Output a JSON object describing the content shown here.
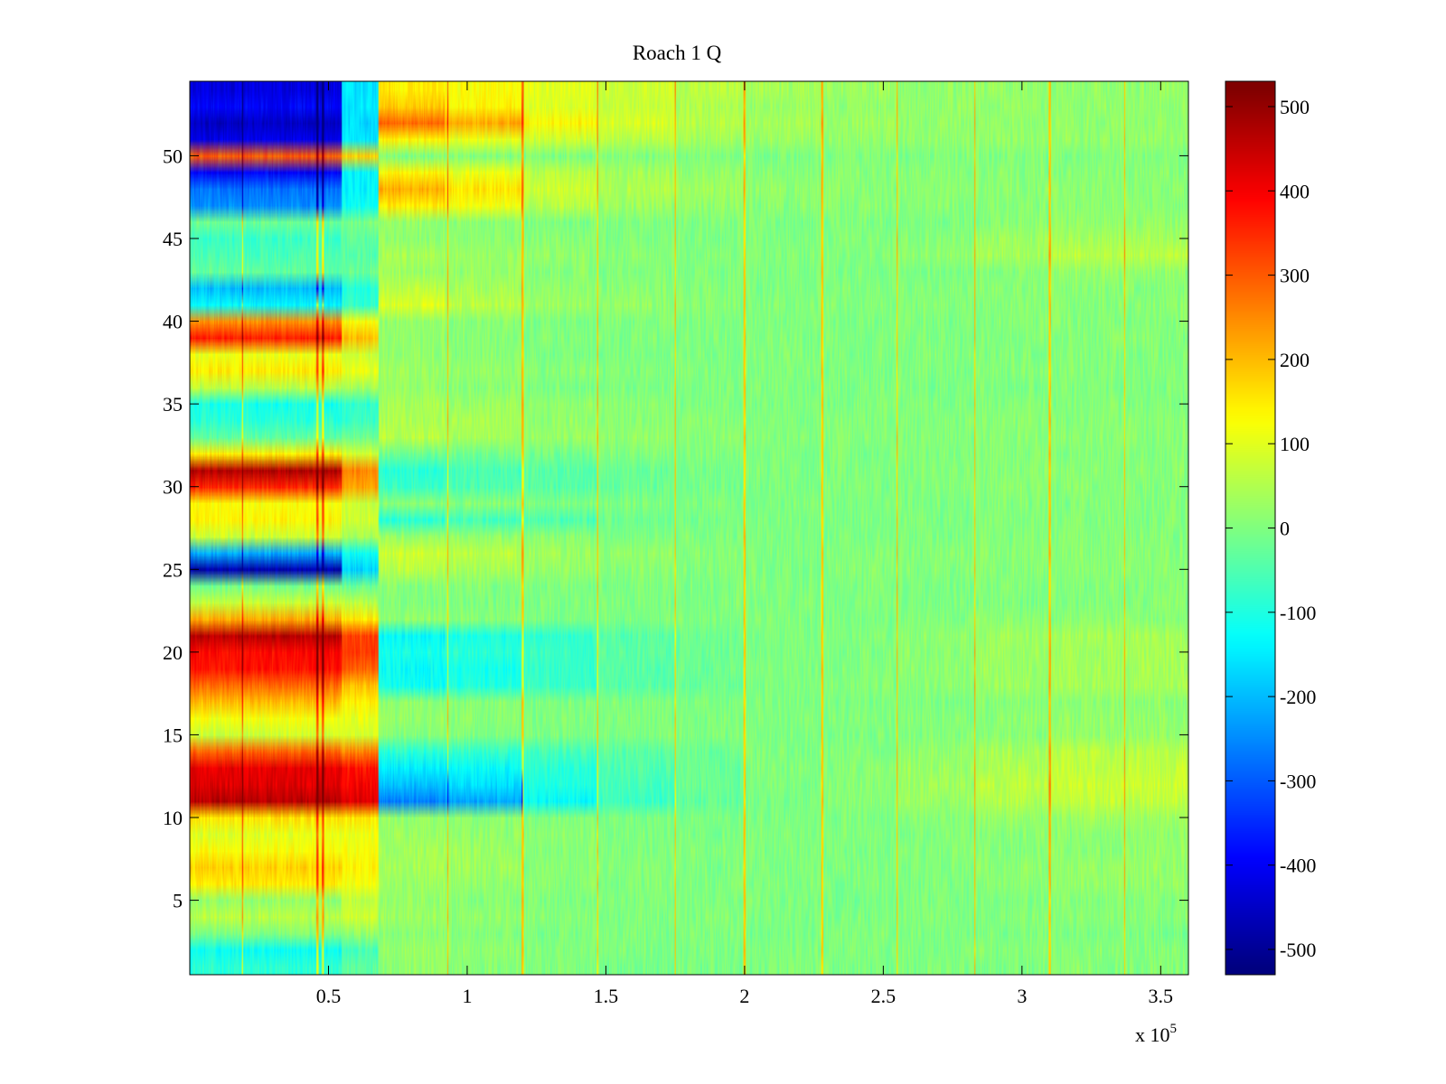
{
  "chart_data": {
    "type": "heatmap",
    "title": "Roach 1 Q",
    "xlabel": "",
    "ylabel": "",
    "x_range": [
      0,
      360000
    ],
    "y_range": [
      0.5,
      54.5
    ],
    "x_ticks": [
      50000,
      100000,
      150000,
      200000,
      250000,
      300000,
      350000
    ],
    "x_tick_labels": [
      "0.5",
      "1",
      "1.5",
      "2",
      "2.5",
      "3",
      "3.5"
    ],
    "x_exponent_label": "x 10",
    "x_exponent_power": "5",
    "y_ticks": [
      5,
      10,
      15,
      20,
      25,
      30,
      35,
      40,
      45,
      50
    ],
    "y_tick_labels": [
      "5",
      "10",
      "15",
      "20",
      "25",
      "30",
      "35",
      "40",
      "45",
      "50"
    ],
    "colormap": "jet",
    "color_range": [
      -530,
      530
    ],
    "colorbar_ticks": [
      500,
      400,
      300,
      200,
      100,
      0,
      -100,
      -200,
      -300,
      -400,
      -500
    ],
    "colorbar_tick_labels": [
      "500",
      "400",
      "300",
      "200",
      "100",
      "0",
      "-100",
      "-200",
      "-300",
      "-400",
      "-500"
    ],
    "segment_boundaries": [
      0,
      55000,
      68000,
      92000,
      120000,
      147000,
      175000,
      200000,
      228000,
      255000,
      283000,
      310000,
      337000,
      360000
    ],
    "spike_x": [
      19000,
      46000,
      48000,
      93000,
      120000,
      147000,
      175000,
      200000,
      228000,
      255000,
      283000,
      310000,
      337000
    ],
    "noise_amplitude": 30,
    "rows": [
      {
        "y": 1,
        "levels": [
          -90,
          -30,
          20,
          10,
          0,
          -10,
          -5,
          0,
          -5,
          0,
          0,
          5,
          5
        ]
      },
      {
        "y": 2,
        "levels": [
          -120,
          -60,
          30,
          15,
          5,
          0,
          0,
          0,
          0,
          0,
          5,
          10,
          10
        ]
      },
      {
        "y": 3,
        "levels": [
          0,
          20,
          10,
          5,
          0,
          0,
          0,
          -5,
          0,
          0,
          0,
          0,
          0
        ]
      },
      {
        "y": 4,
        "levels": [
          60,
          80,
          30,
          20,
          10,
          0,
          5,
          0,
          0,
          0,
          5,
          10,
          10
        ]
      },
      {
        "y": 5,
        "levels": [
          20,
          60,
          20,
          10,
          0,
          0,
          0,
          0,
          -5,
          0,
          0,
          5,
          5
        ]
      },
      {
        "y": 6,
        "levels": [
          150,
          120,
          30,
          20,
          10,
          5,
          5,
          0,
          0,
          0,
          10,
          20,
          20
        ]
      },
      {
        "y": 7,
        "levels": [
          180,
          140,
          40,
          30,
          10,
          5,
          0,
          0,
          0,
          5,
          15,
          20,
          25
        ]
      },
      {
        "y": 8,
        "levels": [
          130,
          120,
          40,
          30,
          10,
          5,
          5,
          0,
          0,
          5,
          10,
          15,
          20
        ]
      },
      {
        "y": 9,
        "levels": [
          100,
          110,
          30,
          20,
          10,
          0,
          0,
          0,
          0,
          0,
          10,
          15,
          20
        ]
      },
      {
        "y": 10,
        "levels": [
          160,
          150,
          20,
          10,
          0,
          0,
          0,
          0,
          0,
          5,
          20,
          30,
          30
        ]
      },
      {
        "y": 11,
        "levels": [
          470,
          430,
          -260,
          -220,
          -130,
          -70,
          -30,
          -10,
          10,
          30,
          50,
          70,
          70
        ]
      },
      {
        "y": 12,
        "levels": [
          430,
          400,
          -200,
          -170,
          -100,
          -60,
          -20,
          0,
          10,
          30,
          60,
          80,
          80
        ]
      },
      {
        "y": 13,
        "levels": [
          420,
          380,
          -150,
          -130,
          -90,
          -50,
          -20,
          0,
          10,
          30,
          50,
          70,
          70
        ]
      },
      {
        "y": 14,
        "levels": [
          300,
          260,
          -90,
          -80,
          -60,
          -40,
          -20,
          0,
          5,
          20,
          40,
          60,
          60
        ]
      },
      {
        "y": 15,
        "levels": [
          80,
          90,
          10,
          5,
          0,
          0,
          0,
          0,
          0,
          5,
          10,
          20,
          20
        ]
      },
      {
        "y": 16,
        "levels": [
          120,
          110,
          20,
          10,
          0,
          0,
          0,
          0,
          0,
          5,
          15,
          20,
          20
        ]
      },
      {
        "y": 17,
        "levels": [
          200,
          150,
          20,
          10,
          0,
          0,
          0,
          0,
          0,
          0,
          10,
          10,
          15
        ]
      },
      {
        "y": 18,
        "levels": [
          290,
          200,
          -120,
          -100,
          -70,
          -40,
          -20,
          0,
          5,
          15,
          30,
          40,
          40
        ]
      },
      {
        "y": 19,
        "levels": [
          380,
          300,
          -130,
          -110,
          -80,
          -40,
          -20,
          0,
          5,
          15,
          30,
          40,
          40
        ]
      },
      {
        "y": 20,
        "levels": [
          390,
          340,
          -110,
          -90,
          -70,
          -40,
          -20,
          0,
          5,
          15,
          30,
          40,
          40
        ]
      },
      {
        "y": 21,
        "levels": [
          470,
          330,
          -130,
          -110,
          -80,
          -40,
          -20,
          0,
          5,
          15,
          30,
          40,
          40
        ]
      },
      {
        "y": 22,
        "levels": [
          220,
          150,
          20,
          10,
          0,
          0,
          0,
          0,
          0,
          5,
          10,
          10,
          10
        ]
      },
      {
        "y": 23,
        "levels": [
          70,
          60,
          0,
          0,
          0,
          0,
          0,
          0,
          0,
          0,
          0,
          5,
          5
        ]
      },
      {
        "y": 24,
        "levels": [
          -10,
          -20,
          10,
          5,
          0,
          0,
          0,
          0,
          0,
          0,
          0,
          5,
          5
        ]
      },
      {
        "y": 25,
        "levels": [
          -480,
          -180,
          60,
          40,
          20,
          10,
          5,
          0,
          5,
          5,
          10,
          10,
          10
        ]
      },
      {
        "y": 26,
        "levels": [
          -220,
          -120,
          80,
          60,
          30,
          20,
          10,
          0,
          5,
          5,
          10,
          10,
          10
        ]
      },
      {
        "y": 27,
        "levels": [
          80,
          40,
          30,
          20,
          10,
          0,
          0,
          0,
          0,
          0,
          5,
          5,
          5
        ]
      },
      {
        "y": 28,
        "levels": [
          140,
          80,
          -90,
          -60,
          -50,
          -20,
          -10,
          0,
          0,
          0,
          5,
          5,
          5
        ]
      },
      {
        "y": 29,
        "levels": [
          130,
          80,
          10,
          10,
          0,
          0,
          0,
          0,
          0,
          0,
          5,
          5,
          5
        ]
      },
      {
        "y": 30,
        "levels": [
          360,
          230,
          -70,
          -50,
          -40,
          -20,
          -10,
          0,
          0,
          5,
          10,
          10,
          10
        ]
      },
      {
        "y": 31,
        "levels": [
          480,
          260,
          -90,
          -60,
          -40,
          -20,
          -10,
          0,
          0,
          5,
          10,
          10,
          10
        ]
      },
      {
        "y": 32,
        "levels": [
          150,
          90,
          -20,
          -10,
          -10,
          0,
          0,
          0,
          0,
          0,
          5,
          5,
          5
        ]
      },
      {
        "y": 33,
        "levels": [
          -30,
          -20,
          60,
          40,
          30,
          20,
          10,
          0,
          5,
          5,
          10,
          10,
          10
        ]
      },
      {
        "y": 34,
        "levels": [
          -90,
          -70,
          50,
          40,
          20,
          10,
          5,
          0,
          5,
          5,
          10,
          10,
          10
        ]
      },
      {
        "y": 35,
        "levels": [
          -110,
          -80,
          40,
          30,
          20,
          10,
          0,
          0,
          0,
          0,
          5,
          5,
          5
        ]
      },
      {
        "y": 36,
        "levels": [
          60,
          40,
          20,
          10,
          0,
          0,
          0,
          0,
          0,
          0,
          0,
          0,
          0
        ]
      },
      {
        "y": 37,
        "levels": [
          150,
          110,
          30,
          20,
          10,
          0,
          0,
          0,
          0,
          0,
          5,
          5,
          5
        ]
      },
      {
        "y": 38,
        "levels": [
          110,
          80,
          20,
          10,
          0,
          0,
          0,
          0,
          0,
          0,
          5,
          5,
          5
        ]
      },
      {
        "y": 39,
        "levels": [
          370,
          200,
          20,
          10,
          0,
          0,
          0,
          0,
          0,
          0,
          5,
          5,
          5
        ]
      },
      {
        "y": 40,
        "levels": [
          250,
          130,
          20,
          10,
          0,
          0,
          0,
          0,
          0,
          0,
          5,
          5,
          5
        ]
      },
      {
        "y": 41,
        "levels": [
          -140,
          -80,
          100,
          60,
          30,
          20,
          10,
          5,
          5,
          5,
          10,
          10,
          10
        ]
      },
      {
        "y": 42,
        "levels": [
          -200,
          -100,
          60,
          40,
          20,
          10,
          5,
          0,
          5,
          5,
          10,
          10,
          10
        ]
      },
      {
        "y": 43,
        "levels": [
          -30,
          -20,
          30,
          20,
          10,
          0,
          0,
          0,
          0,
          0,
          10,
          20,
          20
        ]
      },
      {
        "y": 44,
        "levels": [
          -60,
          -40,
          40,
          30,
          20,
          10,
          5,
          0,
          10,
          20,
          40,
          60,
          60
        ]
      },
      {
        "y": 45,
        "levels": [
          -70,
          -40,
          20,
          10,
          10,
          0,
          0,
          0,
          5,
          10,
          30,
          40,
          40
        ]
      },
      {
        "y": 46,
        "levels": [
          -20,
          -10,
          20,
          10,
          0,
          0,
          0,
          0,
          0,
          0,
          10,
          20,
          20
        ]
      },
      {
        "y": 47,
        "levels": [
          -250,
          -120,
          150,
          120,
          60,
          30,
          20,
          10,
          10,
          10,
          10,
          10,
          10
        ]
      },
      {
        "y": 48,
        "levels": [
          -280,
          -140,
          220,
          160,
          80,
          50,
          30,
          20,
          10,
          10,
          10,
          10,
          10
        ]
      },
      {
        "y": 49,
        "levels": [
          -400,
          -140,
          140,
          110,
          60,
          40,
          20,
          10,
          10,
          10,
          10,
          10,
          10
        ]
      },
      {
        "y": 50,
        "levels": [
          300,
          180,
          0,
          0,
          0,
          0,
          0,
          0,
          0,
          0,
          0,
          0,
          0
        ]
      },
      {
        "y": 51,
        "levels": [
          -420,
          -160,
          140,
          110,
          80,
          60,
          40,
          30,
          20,
          20,
          20,
          20,
          20
        ]
      },
      {
        "y": 52,
        "levels": [
          -460,
          -170,
          290,
          220,
          140,
          90,
          60,
          40,
          30,
          20,
          20,
          20,
          20
        ]
      },
      {
        "y": 53,
        "levels": [
          -400,
          -160,
          190,
          140,
          100,
          70,
          50,
          30,
          20,
          20,
          20,
          20,
          20
        ]
      },
      {
        "y": 54,
        "levels": [
          -430,
          -160,
          150,
          130,
          100,
          80,
          60,
          40,
          30,
          20,
          20,
          20,
          20
        ]
      }
    ]
  }
}
